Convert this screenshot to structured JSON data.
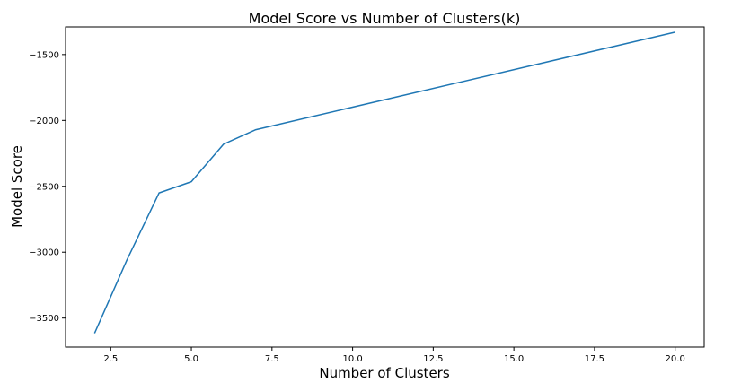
{
  "chart_data": {
    "type": "line",
    "title": "Model Score vs Number of Clusters(k)",
    "xlabel": "Number of Clusters",
    "ylabel": "Model Score",
    "xlim": [
      1.1,
      20.9
    ],
    "ylim": [
      -3720,
      -1290
    ],
    "xticks": [
      2.5,
      5.0,
      7.5,
      10.0,
      12.5,
      15.0,
      17.5,
      20.0
    ],
    "xtick_labels": [
      "2.5",
      "5.0",
      "7.5",
      "10.0",
      "12.5",
      "15.0",
      "17.5",
      "20.0"
    ],
    "yticks": [
      -3500,
      -3000,
      -2500,
      -2000,
      -1500
    ],
    "ytick_labels": [
      "−3500",
      "−3000",
      "−2500",
      "−2000",
      "−1500"
    ],
    "grid": false,
    "series": [
      {
        "name": "Model Score",
        "color": "#1f77b4",
        "x": [
          2,
          3,
          4,
          5,
          6,
          7,
          20
        ],
        "y": [
          -3615,
          -3060,
          -2550,
          -2465,
          -2180,
          -2070,
          -1330
        ]
      }
    ]
  }
}
